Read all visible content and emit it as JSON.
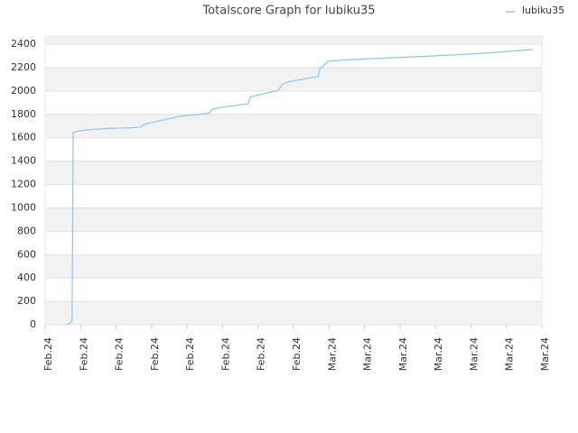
{
  "chart_data": {
    "type": "line",
    "title": "Totalscore Graph for lubiku35",
    "x": [
      0.59,
      0.71,
      0.76,
      0.79,
      0.97,
      1.27,
      1.78,
      2.42,
      2.67,
      2.85,
      3.82,
      4.63,
      4.71,
      4.96,
      5.73,
      5.78,
      6.57,
      6.69,
      6.87,
      7.69,
      7.74,
      7.97,
      8.4,
      9.42,
      10.94,
      12.47,
      13.74
    ],
    "series": [
      {
        "name": "lubiku35",
        "color": "#8ec4f0",
        "values": [
          0,
          15,
          40,
          1645,
          1660,
          1670,
          1680,
          1685,
          1690,
          1720,
          1785,
          1810,
          1845,
          1860,
          1890,
          1950,
          2005,
          2060,
          2080,
          2125,
          2185,
          2255,
          2265,
          2280,
          2300,
          2325,
          2355
        ]
      }
    ],
    "xlim": [
      0,
      14
    ],
    "xticks": [
      {
        "value": 0,
        "label": "Feb.24"
      },
      {
        "value": 1,
        "label": "Feb.24"
      },
      {
        "value": 2,
        "label": "Feb.24"
      },
      {
        "value": 3,
        "label": "Feb.24"
      },
      {
        "value": 4,
        "label": "Feb.24"
      },
      {
        "value": 5,
        "label": "Feb.24"
      },
      {
        "value": 6,
        "label": "Feb.24"
      },
      {
        "value": 7,
        "label": "Feb.24"
      },
      {
        "value": 8,
        "label": "Mar.24"
      },
      {
        "value": 9,
        "label": "Mar.24"
      },
      {
        "value": 10,
        "label": "Mar.24"
      },
      {
        "value": 11,
        "label": "Mar.24"
      },
      {
        "value": 12,
        "label": "Mar.24"
      },
      {
        "value": 13,
        "label": "Mar.24"
      },
      {
        "value": 14,
        "label": "Mar.24"
      }
    ],
    "ylim": [
      0,
      2470
    ],
    "yticks": [
      0,
      200,
      400,
      600,
      800,
      1000,
      1200,
      1400,
      1600,
      1800,
      2000,
      2200,
      2400
    ],
    "grid": true,
    "legend": "top-right"
  }
}
